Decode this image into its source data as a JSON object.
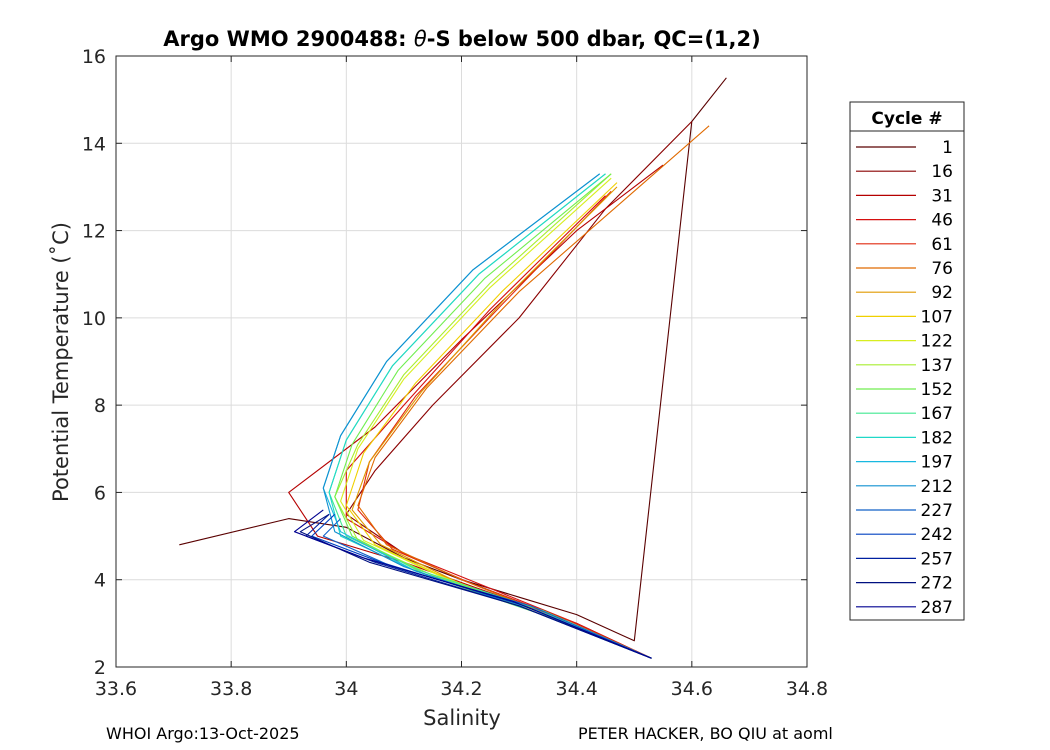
{
  "chart_data": {
    "type": "line",
    "title_prefix": "Argo WMO 2900488: ",
    "title_theta": "θ",
    "title_suffix": "-S below 500 dbar,  QC=(1,2)",
    "xlabel": "Salinity",
    "ylabel": "Potential Temperature (˚C)",
    "xlim": [
      33.6,
      34.8
    ],
    "ylim": [
      2,
      16
    ],
    "xticks": [
      33.6,
      33.8,
      34.0,
      34.2,
      34.4,
      34.6,
      34.8
    ],
    "xtick_labels": [
      "33.6",
      "33.8",
      "34",
      "34.2",
      "34.4",
      "34.6",
      "34.8"
    ],
    "yticks": [
      2,
      4,
      6,
      8,
      10,
      12,
      14,
      16
    ],
    "ytick_labels": [
      "2",
      "4",
      "6",
      "8",
      "10",
      "12",
      "14",
      "16"
    ],
    "grid": true,
    "legend": {
      "title": "Cycle #",
      "placement": "outside-right",
      "entries": [
        "1",
        "16",
        "31",
        "46",
        "61",
        "76",
        "92",
        "107",
        "122",
        "137",
        "152",
        "167",
        "182",
        "197",
        "212",
        "227",
        "242",
        "257",
        "272",
        "287"
      ],
      "colors": [
        "#5a0000",
        "#8a0000",
        "#b50000",
        "#d51010",
        "#e02a10",
        "#e06a00",
        "#e09a00",
        "#f0d000",
        "#d8ee20",
        "#a8ee30",
        "#70ee50",
        "#40e890",
        "#20d8c8",
        "#18b8e0",
        "#1090d0",
        "#1060c8",
        "#0040c0",
        "#0020a0",
        "#001080",
        "#000090"
      ]
    },
    "series": [
      {
        "name": "1",
        "s": [
          33.71,
          33.9,
          34.0,
          34.1,
          34.2,
          34.3,
          34.4,
          34.5,
          34.6,
          34.66
        ],
        "t": [
          4.8,
          5.4,
          5.2,
          4.5,
          4.0,
          3.6,
          3.2,
          2.6,
          14.5,
          15.5
        ]
      },
      {
        "name": "16",
        "s": [
          34.53,
          34.4,
          34.3,
          34.2,
          34.1,
          34.0,
          34.05,
          34.15,
          34.3,
          34.45,
          34.6
        ],
        "t": [
          2.2,
          2.9,
          3.5,
          4.0,
          4.6,
          5.5,
          6.5,
          8.0,
          10.0,
          12.5,
          14.5
        ]
      },
      {
        "name": "31",
        "s": [
          34.53,
          34.4,
          34.25,
          34.1,
          33.95,
          33.9,
          34.05,
          34.2,
          34.4,
          34.55
        ],
        "t": [
          2.2,
          3.0,
          3.7,
          4.4,
          5.0,
          6.0,
          7.5,
          9.5,
          12.0,
          13.5
        ]
      },
      {
        "name": "46",
        "s": [
          34.53,
          34.4,
          34.25,
          34.1,
          34.0,
          34.0,
          34.1,
          34.25,
          34.45
        ],
        "t": [
          2.2,
          3.0,
          3.8,
          4.6,
          5.4,
          6.5,
          8.0,
          10.2,
          12.8
        ]
      },
      {
        "name": "61",
        "s": [
          34.53,
          34.38,
          34.22,
          34.08,
          34.02,
          34.04,
          34.12,
          34.27,
          34.46
        ],
        "t": [
          2.2,
          3.1,
          3.9,
          4.7,
          5.6,
          6.7,
          8.2,
          10.3,
          12.9
        ]
      },
      {
        "name": "76",
        "s": [
          34.53,
          34.37,
          34.2,
          34.07,
          34.02,
          34.05,
          34.14,
          34.3,
          34.63
        ],
        "t": [
          2.2,
          3.1,
          4.0,
          4.8,
          5.7,
          6.8,
          8.4,
          10.6,
          14.4
        ]
      },
      {
        "name": "92",
        "s": [
          34.53,
          34.37,
          34.2,
          34.06,
          34.01,
          34.04,
          34.13,
          34.28,
          34.47
        ],
        "t": [
          2.2,
          3.1,
          3.9,
          4.8,
          5.6,
          6.7,
          8.3,
          10.5,
          13.0
        ]
      },
      {
        "name": "107",
        "s": [
          34.53,
          34.36,
          34.18,
          34.05,
          34.0,
          34.03,
          34.12,
          34.27,
          34.47
        ],
        "t": [
          2.2,
          3.1,
          4.0,
          4.8,
          5.7,
          6.9,
          8.5,
          10.6,
          13.1
        ]
      },
      {
        "name": "122",
        "s": [
          34.53,
          34.35,
          34.16,
          34.03,
          33.99,
          34.02,
          34.1,
          34.25,
          34.46
        ],
        "t": [
          2.2,
          3.2,
          4.1,
          4.9,
          5.8,
          7.0,
          8.6,
          10.7,
          13.2
        ]
      },
      {
        "name": "137",
        "s": [
          34.53,
          34.35,
          34.15,
          34.02,
          33.98,
          34.02,
          34.1,
          34.25,
          34.46
        ],
        "t": [
          2.2,
          3.2,
          4.1,
          4.9,
          5.9,
          7.1,
          8.7,
          10.8,
          13.3
        ]
      },
      {
        "name": "152",
        "s": [
          34.53,
          34.34,
          34.14,
          34.01,
          33.98,
          34.01,
          34.09,
          34.24,
          34.46
        ],
        "t": [
          2.2,
          3.2,
          4.1,
          5.0,
          5.9,
          7.1,
          8.8,
          10.9,
          13.3
        ]
      },
      {
        "name": "167",
        "s": [
          34.53,
          34.34,
          34.13,
          34.0,
          33.97,
          34.0,
          34.08,
          34.23,
          34.45
        ],
        "t": [
          2.2,
          3.3,
          4.2,
          5.0,
          6.0,
          7.2,
          8.9,
          11.0,
          13.3
        ]
      },
      {
        "name": "182",
        "s": [
          34.53,
          34.33,
          34.12,
          33.99,
          33.97,
          34.0,
          34.08,
          34.23,
          34.45
        ],
        "t": [
          2.2,
          3.3,
          4.2,
          5.0,
          6.0,
          7.2,
          8.9,
          11.0,
          13.3
        ]
      },
      {
        "name": "197",
        "s": [
          34.53,
          34.33,
          34.12,
          33.99,
          33.96,
          33.99,
          34.07,
          34.22,
          34.44
        ],
        "t": [
          2.2,
          3.3,
          4.2,
          5.1,
          6.1,
          7.3,
          9.0,
          11.1,
          13.3
        ]
      },
      {
        "name": "212",
        "s": [
          34.53,
          34.32,
          34.1,
          33.98,
          33.96,
          33.99,
          34.07,
          34.22,
          34.44
        ],
        "t": [
          2.2,
          3.3,
          4.3,
          5.1,
          6.1,
          7.3,
          9.0,
          11.1,
          13.3
        ]
      },
      {
        "name": "227",
        "s": [
          34.53,
          34.32,
          34.08,
          33.96,
          33.99
        ],
        "t": [
          2.2,
          3.4,
          4.3,
          5.0,
          5.4
        ]
      },
      {
        "name": "242",
        "s": [
          34.53,
          34.31,
          34.06,
          33.94,
          33.98
        ],
        "t": [
          2.2,
          3.4,
          4.4,
          5.0,
          5.5
        ]
      },
      {
        "name": "257",
        "s": [
          34.53,
          34.3,
          34.05,
          33.93,
          33.97
        ],
        "t": [
          2.2,
          3.4,
          4.4,
          5.0,
          5.5
        ]
      },
      {
        "name": "272",
        "s": [
          34.53,
          34.3,
          34.04,
          33.92,
          33.97
        ],
        "t": [
          2.2,
          3.4,
          4.4,
          5.1,
          5.5
        ]
      },
      {
        "name": "287",
        "s": [
          34.53,
          34.29,
          34.03,
          33.91,
          33.96
        ],
        "t": [
          2.2,
          3.5,
          4.5,
          5.1,
          5.6
        ]
      }
    ]
  },
  "footer": {
    "left": "WHOI Argo:13-Oct-2025",
    "right": "PETER HACKER, BO QIU at aoml"
  }
}
